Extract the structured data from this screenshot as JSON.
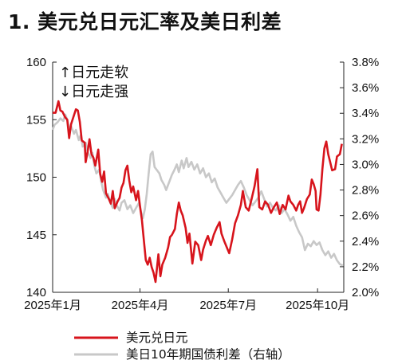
{
  "title": "1. 美元兑日元汇率及美日利差",
  "chart_data": {
    "type": "line",
    "x_tick_labels": [
      "2025年1月",
      "2025年4月",
      "2025年7月",
      "2025年10月"
    ],
    "x_tick_dates": [
      "2025-01-01",
      "2025-04-01",
      "2025-07-01",
      "2025-10-01"
    ],
    "x_range": [
      "2025-01-01",
      "2025-10-28"
    ],
    "y_left": {
      "range": [
        140,
        160
      ],
      "ticks": [
        140,
        145,
        150,
        155,
        160
      ]
    },
    "y_right": {
      "range": [
        2.0,
        3.8
      ],
      "ticks": [
        2.0,
        2.2,
        2.4,
        2.6,
        2.8,
        3.0,
        3.2,
        3.4,
        3.6,
        3.8
      ],
      "tick_labels": [
        "2.0%",
        "2.2%",
        "2.4%",
        "2.6%",
        "2.8%",
        "3.0%",
        "3.2%",
        "3.4%",
        "3.6%",
        "3.8%"
      ]
    },
    "annotations": [
      "↑日元走软",
      "↓日元走强"
    ],
    "grid": false,
    "legend_position": "bottom",
    "series": [
      {
        "name": "美元兑日元",
        "axis": "left",
        "color": "#d7141c",
        "points": [
          [
            "2025-01-01",
            155.6
          ],
          [
            "2025-01-04",
            155.6
          ],
          [
            "2025-01-07",
            156.6
          ],
          [
            "2025-01-09",
            155.8
          ],
          [
            "2025-01-11",
            155.7
          ],
          [
            "2025-01-14",
            155.2
          ],
          [
            "2025-01-16",
            155.0
          ],
          [
            "2025-01-18",
            153.4
          ],
          [
            "2025-01-20",
            154.6
          ],
          [
            "2025-01-23",
            155.4
          ],
          [
            "2025-01-25",
            155.9
          ],
          [
            "2025-01-27",
            155.8
          ],
          [
            "2025-01-29",
            154.8
          ],
          [
            "2025-01-31",
            153.2
          ],
          [
            "2025-02-03",
            153.0
          ],
          [
            "2025-02-04",
            151.3
          ],
          [
            "2025-02-06",
            152.2
          ],
          [
            "2025-02-08",
            153.3
          ],
          [
            "2025-02-10",
            152.0
          ],
          [
            "2025-02-12",
            151.7
          ],
          [
            "2025-02-14",
            151.0
          ],
          [
            "2025-02-17",
            152.4
          ],
          [
            "2025-02-19",
            150.3
          ],
          [
            "2025-02-21",
            149.6
          ],
          [
            "2025-02-23",
            150.5
          ],
          [
            "2025-02-25",
            148.6
          ],
          [
            "2025-02-28",
            148.1
          ],
          [
            "2025-03-02",
            147.7
          ],
          [
            "2025-03-04",
            148.8
          ],
          [
            "2025-03-06",
            147.3
          ],
          [
            "2025-03-09",
            147.9
          ],
          [
            "2025-03-11",
            148.2
          ],
          [
            "2025-03-13",
            149.1
          ],
          [
            "2025-03-15",
            149.5
          ],
          [
            "2025-03-17",
            150.6
          ],
          [
            "2025-03-19",
            151.0
          ],
          [
            "2025-03-21",
            149.7
          ],
          [
            "2025-03-23",
            148.7
          ],
          [
            "2025-03-25",
            149.2
          ],
          [
            "2025-03-28",
            148.0
          ],
          [
            "2025-03-30",
            148.8
          ],
          [
            "2025-04-01",
            147.5
          ],
          [
            "2025-04-03",
            146.3
          ],
          [
            "2025-04-05",
            144.5
          ],
          [
            "2025-04-07",
            142.8
          ],
          [
            "2025-04-09",
            142.4
          ],
          [
            "2025-04-11",
            143.0
          ],
          [
            "2025-04-13",
            142.2
          ],
          [
            "2025-04-15",
            141.7
          ],
          [
            "2025-04-17",
            140.9
          ],
          [
            "2025-04-20",
            143.3
          ],
          [
            "2025-04-22",
            141.4
          ],
          [
            "2025-04-24",
            142.4
          ],
          [
            "2025-04-27",
            143.0
          ],
          [
            "2025-04-30",
            143.9
          ],
          [
            "2025-05-02",
            144.8
          ],
          [
            "2025-05-04",
            145.0
          ],
          [
            "2025-05-07",
            145.5
          ],
          [
            "2025-05-09",
            146.8
          ],
          [
            "2025-05-11",
            147.8
          ],
          [
            "2025-05-13",
            147.1
          ],
          [
            "2025-05-15",
            146.7
          ],
          [
            "2025-05-18",
            145.6
          ],
          [
            "2025-05-20",
            144.3
          ],
          [
            "2025-05-22",
            145.1
          ],
          [
            "2025-05-25",
            142.5
          ],
          [
            "2025-05-28",
            144.4
          ],
          [
            "2025-05-31",
            144.1
          ],
          [
            "2025-06-03",
            142.8
          ],
          [
            "2025-06-05",
            143.7
          ],
          [
            "2025-06-08",
            144.5
          ],
          [
            "2025-06-10",
            144.9
          ],
          [
            "2025-06-13",
            144.1
          ],
          [
            "2025-06-16",
            145.0
          ],
          [
            "2025-06-19",
            145.6
          ],
          [
            "2025-06-22",
            146.1
          ],
          [
            "2025-06-24",
            145.1
          ],
          [
            "2025-06-27",
            144.4
          ],
          [
            "2025-06-30",
            143.8
          ],
          [
            "2025-07-02",
            143.4
          ],
          [
            "2025-07-05",
            144.6
          ],
          [
            "2025-07-08",
            146.0
          ],
          [
            "2025-07-11",
            146.7
          ],
          [
            "2025-07-14",
            147.6
          ],
          [
            "2025-07-16",
            148.8
          ],
          [
            "2025-07-19",
            147.4
          ],
          [
            "2025-07-22",
            147.1
          ],
          [
            "2025-07-25",
            148.1
          ],
          [
            "2025-07-28",
            149.2
          ],
          [
            "2025-07-31",
            150.7
          ],
          [
            "2025-08-02",
            147.4
          ],
          [
            "2025-08-05",
            147.2
          ],
          [
            "2025-08-08",
            147.9
          ],
          [
            "2025-08-11",
            147.6
          ],
          [
            "2025-08-14",
            146.9
          ],
          [
            "2025-08-17",
            147.4
          ],
          [
            "2025-08-20",
            147.8
          ],
          [
            "2025-08-23",
            146.8
          ],
          [
            "2025-08-26",
            147.6
          ],
          [
            "2025-08-29",
            147.2
          ],
          [
            "2025-09-01",
            148.4
          ],
          [
            "2025-09-03",
            147.9
          ],
          [
            "2025-09-06",
            147.6
          ],
          [
            "2025-09-09",
            147.1
          ],
          [
            "2025-09-11",
            147.6
          ],
          [
            "2025-09-13",
            147.9
          ],
          [
            "2025-09-15",
            146.9
          ],
          [
            "2025-09-17",
            147.3
          ],
          [
            "2025-09-20",
            148.1
          ],
          [
            "2025-09-23",
            148.5
          ],
          [
            "2025-09-25",
            149.8
          ],
          [
            "2025-09-27",
            149.4
          ],
          [
            "2025-09-29",
            148.8
          ],
          [
            "2025-09-30",
            147.2
          ],
          [
            "2025-10-02",
            147.1
          ],
          [
            "2025-10-04",
            148.5
          ],
          [
            "2025-10-06",
            150.7
          ],
          [
            "2025-10-08",
            152.5
          ],
          [
            "2025-10-10",
            153.1
          ],
          [
            "2025-10-12",
            152.0
          ],
          [
            "2025-10-14",
            151.3
          ],
          [
            "2025-10-16",
            150.6
          ],
          [
            "2025-10-19",
            150.7
          ],
          [
            "2025-10-21",
            151.8
          ],
          [
            "2025-10-24",
            152.0
          ],
          [
            "2025-10-26",
            152.9
          ]
        ]
      },
      {
        "name": "美日10年期国债利差（右轴）",
        "axis": "right",
        "color": "#c8c8c8",
        "points": [
          [
            "2025-01-01",
            3.27
          ],
          [
            "2025-01-03",
            3.31
          ],
          [
            "2025-01-06",
            3.33
          ],
          [
            "2025-01-09",
            3.36
          ],
          [
            "2025-01-12",
            3.34
          ],
          [
            "2025-01-14",
            3.39
          ],
          [
            "2025-01-16",
            3.35
          ],
          [
            "2025-01-18",
            3.28
          ],
          [
            "2025-01-20",
            3.3
          ],
          [
            "2025-01-23",
            3.24
          ],
          [
            "2025-01-25",
            3.27
          ],
          [
            "2025-01-28",
            3.19
          ],
          [
            "2025-01-30",
            3.23
          ],
          [
            "2025-02-01",
            3.14
          ],
          [
            "2025-02-04",
            3.17
          ],
          [
            "2025-02-06",
            3.1
          ],
          [
            "2025-02-09",
            3.05
          ],
          [
            "2025-02-11",
            3.09
          ],
          [
            "2025-02-13",
            2.99
          ],
          [
            "2025-02-15",
            2.93
          ],
          [
            "2025-02-18",
            2.96
          ],
          [
            "2025-02-20",
            2.87
          ],
          [
            "2025-02-22",
            2.8
          ],
          [
            "2025-02-25",
            2.74
          ],
          [
            "2025-02-27",
            2.77
          ],
          [
            "2025-03-01",
            2.71
          ],
          [
            "2025-03-04",
            2.66
          ],
          [
            "2025-03-06",
            2.73
          ],
          [
            "2025-03-08",
            2.68
          ],
          [
            "2025-03-11",
            2.64
          ],
          [
            "2025-03-13",
            2.7
          ],
          [
            "2025-03-16",
            2.72
          ],
          [
            "2025-03-19",
            2.65
          ],
          [
            "2025-03-22",
            2.68
          ],
          [
            "2025-03-25",
            2.62
          ],
          [
            "2025-03-28",
            2.66
          ],
          [
            "2025-03-31",
            2.7
          ],
          [
            "2025-04-02",
            2.63
          ],
          [
            "2025-04-04",
            2.58
          ],
          [
            "2025-04-06",
            2.65
          ],
          [
            "2025-04-08",
            2.77
          ],
          [
            "2025-04-10",
            2.93
          ],
          [
            "2025-04-12",
            3.08
          ],
          [
            "2025-04-14",
            3.1
          ],
          [
            "2025-04-16",
            2.98
          ],
          [
            "2025-04-18",
            2.96
          ],
          [
            "2025-04-21",
            2.93
          ],
          [
            "2025-04-23",
            2.88
          ],
          [
            "2025-04-26",
            2.84
          ],
          [
            "2025-04-28",
            2.8
          ],
          [
            "2025-05-01",
            2.86
          ],
          [
            "2025-05-04",
            2.92
          ],
          [
            "2025-05-06",
            2.95
          ],
          [
            "2025-05-09",
            3.0
          ],
          [
            "2025-05-11",
            2.94
          ],
          [
            "2025-05-14",
            3.03
          ],
          [
            "2025-05-16",
            2.97
          ],
          [
            "2025-05-19",
            3.05
          ],
          [
            "2025-05-21",
            2.98
          ],
          [
            "2025-05-24",
            3.02
          ],
          [
            "2025-05-27",
            2.96
          ],
          [
            "2025-05-30",
            3.0
          ],
          [
            "2025-06-02",
            2.93
          ],
          [
            "2025-06-05",
            2.97
          ],
          [
            "2025-06-08",
            2.9
          ],
          [
            "2025-06-11",
            2.93
          ],
          [
            "2025-06-14",
            2.86
          ],
          [
            "2025-06-17",
            2.89
          ],
          [
            "2025-06-20",
            2.82
          ],
          [
            "2025-06-23",
            2.78
          ],
          [
            "2025-06-26",
            2.74
          ],
          [
            "2025-06-29",
            2.7
          ],
          [
            "2025-07-02",
            2.73
          ],
          [
            "2025-07-05",
            2.76
          ],
          [
            "2025-07-08",
            2.8
          ],
          [
            "2025-07-11",
            2.84
          ],
          [
            "2025-07-14",
            2.87
          ],
          [
            "2025-07-17",
            2.82
          ],
          [
            "2025-07-20",
            2.76
          ],
          [
            "2025-07-23",
            2.72
          ],
          [
            "2025-07-26",
            2.68
          ],
          [
            "2025-07-29",
            2.71
          ],
          [
            "2025-08-01",
            2.74
          ],
          [
            "2025-08-04",
            2.79
          ],
          [
            "2025-08-07",
            2.73
          ],
          [
            "2025-08-10",
            2.67
          ],
          [
            "2025-08-13",
            2.7
          ],
          [
            "2025-08-16",
            2.66
          ],
          [
            "2025-08-19",
            2.64
          ],
          [
            "2025-08-22",
            2.68
          ],
          [
            "2025-08-25",
            2.62
          ],
          [
            "2025-08-28",
            2.65
          ],
          [
            "2025-08-31",
            2.61
          ],
          [
            "2025-09-03",
            2.56
          ],
          [
            "2025-09-06",
            2.59
          ],
          [
            "2025-09-09",
            2.52
          ],
          [
            "2025-09-12",
            2.47
          ],
          [
            "2025-09-15",
            2.43
          ],
          [
            "2025-09-18",
            2.33
          ],
          [
            "2025-09-21",
            2.38
          ],
          [
            "2025-09-24",
            2.36
          ],
          [
            "2025-09-27",
            2.4
          ],
          [
            "2025-09-30",
            2.37
          ],
          [
            "2025-10-03",
            2.39
          ],
          [
            "2025-10-06",
            2.33
          ],
          [
            "2025-10-09",
            2.29
          ],
          [
            "2025-10-12",
            2.32
          ],
          [
            "2025-10-15",
            2.27
          ],
          [
            "2025-10-18",
            2.3
          ],
          [
            "2025-10-21",
            2.25
          ],
          [
            "2025-10-24",
            2.22
          ],
          [
            "2025-10-27",
            2.21
          ]
        ]
      }
    ]
  }
}
